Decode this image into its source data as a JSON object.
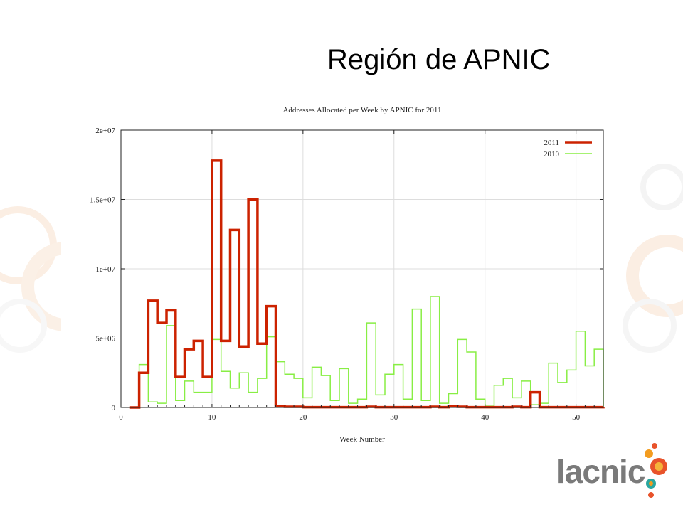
{
  "slide": {
    "title": "Región de APNIC"
  },
  "logo": {
    "text": "lacnic"
  },
  "colors": {
    "series_2011": "#cc2200",
    "series_2010": "#88ee44",
    "logo_text": "#7a7a7a"
  },
  "chart_data": {
    "type": "line",
    "step": true,
    "title": "Addresses Allocated per Week by APNIC for 2011",
    "xlabel": "Week Number",
    "ylabel": "",
    "xlim": [
      0,
      53
    ],
    "ylim": [
      0,
      20000000
    ],
    "grid": true,
    "legend_position": "top-right",
    "x_ticks": [
      0,
      10,
      20,
      30,
      40,
      50
    ],
    "x_tick_labels": [
      "0",
      "10",
      "20",
      "30",
      "40",
      "50"
    ],
    "y_ticks": [
      0,
      5000000,
      10000000,
      15000000,
      20000000
    ],
    "y_tick_labels": [
      "0",
      "5e+06",
      "1e+07",
      "1.5e+07",
      "2e+07"
    ],
    "series": [
      {
        "name": "2011",
        "x": [
          1,
          2,
          3,
          4,
          5,
          6,
          7,
          8,
          9,
          10,
          11,
          12,
          13,
          14,
          15,
          16,
          17,
          18,
          19,
          20,
          21,
          22,
          23,
          24,
          25,
          26,
          27,
          28,
          29,
          30,
          31,
          32,
          33,
          34,
          35,
          36,
          37,
          38,
          39,
          40,
          41,
          42,
          43,
          44,
          45,
          46,
          47,
          48,
          49,
          50,
          51,
          52,
          53
        ],
        "values": [
          0,
          2500000,
          7700000,
          6100000,
          7000000,
          2200000,
          4200000,
          4800000,
          2200000,
          17800000,
          4800000,
          12800000,
          4400000,
          15000000,
          4600000,
          7300000,
          100000,
          50000,
          50000,
          20000,
          20000,
          20000,
          20000,
          20000,
          20000,
          20000,
          50000,
          20000,
          20000,
          20000,
          20000,
          20000,
          20000,
          50000,
          20000,
          100000,
          50000,
          20000,
          20000,
          20000,
          20000,
          20000,
          50000,
          20000,
          1100000,
          20000,
          20000,
          20000,
          20000,
          20000,
          20000,
          20000,
          50000
        ]
      },
      {
        "name": "2010",
        "x": [
          1,
          2,
          3,
          4,
          5,
          6,
          7,
          8,
          9,
          10,
          11,
          12,
          13,
          14,
          15,
          16,
          17,
          18,
          19,
          20,
          21,
          22,
          23,
          24,
          25,
          26,
          27,
          28,
          29,
          30,
          31,
          32,
          33,
          34,
          35,
          36,
          37,
          38,
          39,
          40,
          41,
          42,
          43,
          44,
          45,
          46,
          47,
          48,
          49,
          50,
          51,
          52,
          53
        ],
        "values": [
          0,
          3100000,
          400000,
          300000,
          5900000,
          500000,
          1900000,
          1100000,
          1100000,
          4900000,
          2600000,
          1400000,
          2500000,
          1100000,
          2100000,
          5100000,
          3300000,
          2400000,
          2100000,
          700000,
          2900000,
          2300000,
          500000,
          2800000,
          300000,
          600000,
          6100000,
          900000,
          2400000,
          3100000,
          600000,
          7100000,
          500000,
          8000000,
          300000,
          1000000,
          4900000,
          4000000,
          600000,
          100000,
          1600000,
          2100000,
          700000,
          1900000,
          200000,
          300000,
          3200000,
          1800000,
          2700000,
          5500000,
          3000000,
          4200000,
          0
        ]
      }
    ]
  }
}
